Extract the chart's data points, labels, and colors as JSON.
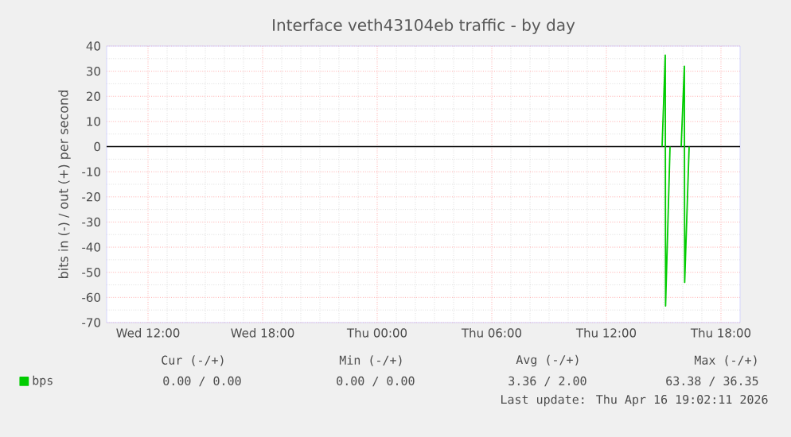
{
  "chart_data": {
    "type": "line",
    "title": "Interface veth43104eb traffic - by day",
    "ylabel": "bits in (-) / out (+) per second",
    "series": [
      {
        "name": "bps",
        "color": "#00cc00",
        "x": [
          "2026-04-16T14:55",
          "2026-04-16T15:05",
          "2026-04-16T15:06",
          "2026-04-16T15:20",
          "2026-04-16T15:40",
          "2026-04-16T15:55",
          "2026-04-16T16:05",
          "2026-04-16T16:06",
          "2026-04-16T16:20"
        ],
        "values": [
          0,
          36.35,
          -63.38,
          0,
          null,
          0,
          32,
          -54,
          0
        ]
      }
    ],
    "xlim": [
      "2026-04-15T09:50",
      "2026-04-16T19:00"
    ],
    "xticks": [
      {
        "value": "2026-04-15T12:00",
        "label": "Wed 12:00"
      },
      {
        "value": "2026-04-15T18:00",
        "label": "Wed 18:00"
      },
      {
        "value": "2026-04-16T00:00",
        "label": "Thu 00:00"
      },
      {
        "value": "2026-04-16T06:00",
        "label": "Thu 06:00"
      },
      {
        "value": "2026-04-16T12:00",
        "label": "Thu 12:00"
      },
      {
        "value": "2026-04-16T18:00",
        "label": "Thu 18:00"
      }
    ],
    "ylim": [
      -70,
      40
    ],
    "yticks": [
      -70,
      -60,
      -50,
      -40,
      -30,
      -20,
      -10,
      0,
      10,
      20,
      30,
      40
    ],
    "ref_lines": [
      {
        "axis": "y",
        "value": 0,
        "color": "#000000"
      }
    ],
    "grid": true,
    "legend": "bottom left",
    "line_style": "solid",
    "marker": "none",
    "annotations": [
      "Cur (-/+)",
      "Min (-/+)",
      "Avg (-/+)",
      "Max (-/+)",
      "0.00 / 0.00",
      "0.00 / 0.00",
      "3.36 / 2.00",
      "63.38 / 36.35",
      "Last update: Thu Apr 16 19:02:11 2026"
    ]
  }
}
